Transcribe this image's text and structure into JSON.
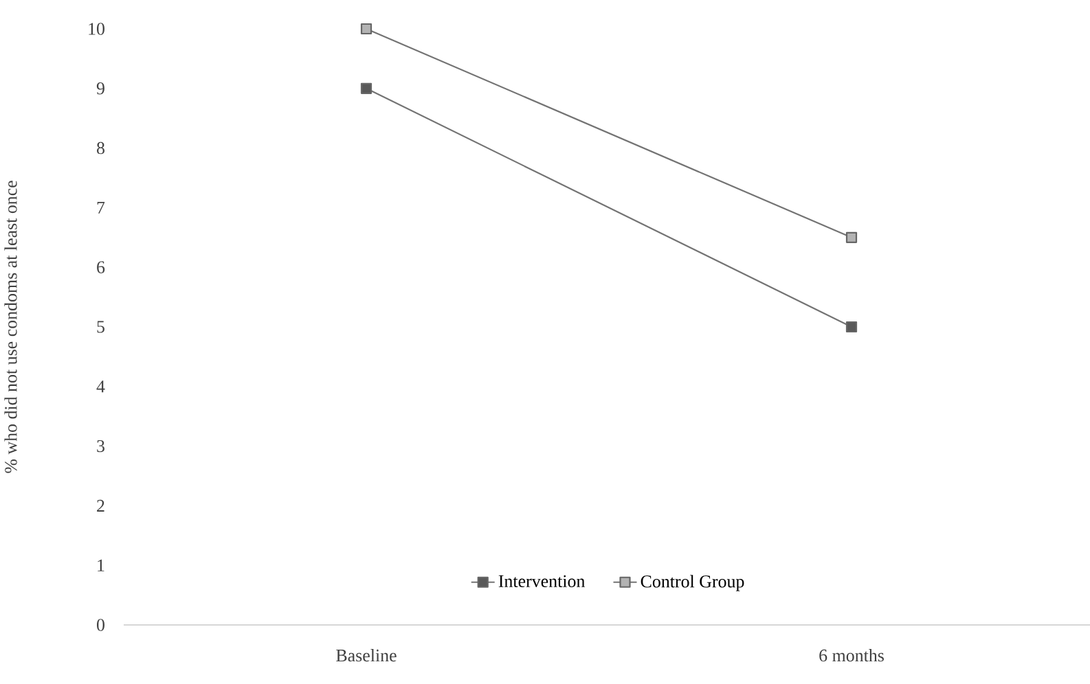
{
  "chart_data": {
    "type": "line",
    "ylabel": "% who did not use condoms at least once",
    "categories": [
      "Baseline",
      "6 months"
    ],
    "series": [
      {
        "name": "Intervention",
        "color": "#595959",
        "values": [
          9,
          5
        ],
        "marker": "square"
      },
      {
        "name": "Control Group",
        "color": "#b3b3b3",
        "values": [
          10,
          6.5
        ],
        "marker": "square"
      }
    ],
    "ylim": [
      0,
      10
    ],
    "yticks": [
      0,
      1,
      2,
      3,
      4,
      5,
      6,
      7,
      8,
      9,
      10
    ],
    "grid": false,
    "legend": "bottom",
    "line_style": "solid"
  }
}
